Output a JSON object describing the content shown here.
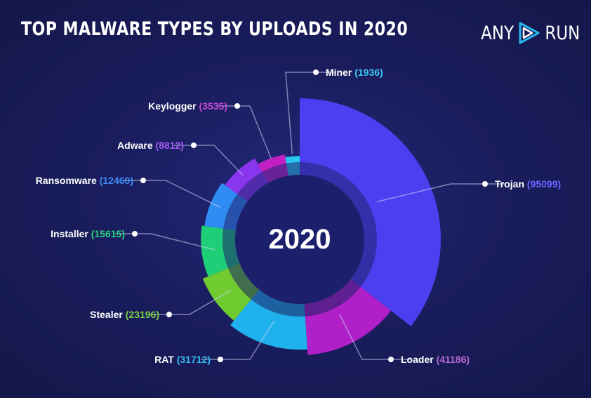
{
  "title": "TOP MALWARE TYPES BY UPLOADS IN 2020",
  "logo": {
    "left": "ANY",
    "right": "RUN"
  },
  "chart_data": {
    "type": "pie",
    "title": "TOP MALWARE TYPES BY UPLOADS IN 2020",
    "center_label": "2020",
    "categories": [
      "Trojan",
      "Loader",
      "RAT",
      "Stealer",
      "Installer",
      "Ransomware",
      "Adware",
      "Keylogger",
      "Miner"
    ],
    "values": [
      95099,
      41186,
      31712,
      23196,
      15615,
      12460,
      8812,
      3535,
      1936
    ],
    "colors": [
      "#4b3fef",
      "#b01fc8",
      "#1fb1ee",
      "#6fcb30",
      "#1fcf78",
      "#2f8cf3",
      "#8a35ee",
      "#c31fc4",
      "#28c7ee"
    ],
    "label_colors": [
      "#6c63ff",
      "#b86ad1",
      "#35b8f0",
      "#7ad142",
      "#28d37e",
      "#3f8cf4",
      "#a55cf2",
      "#c64ad6",
      "#39c6ef"
    ]
  }
}
